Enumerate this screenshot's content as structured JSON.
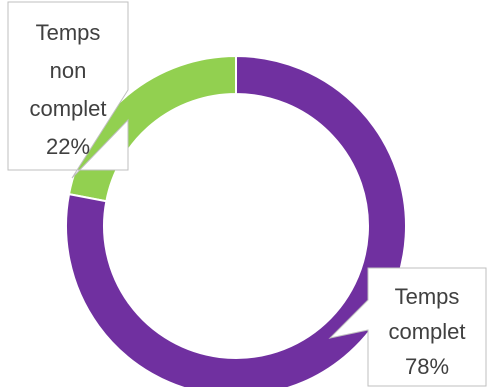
{
  "chart_data": {
    "type": "pie",
    "variant": "donut",
    "title": "",
    "categories": [
      "Temps non complet",
      "Temps complet"
    ],
    "values": [
      22,
      78
    ],
    "unit": "%",
    "colors": [
      "#92d050",
      "#7030a0"
    ],
    "labels": [
      {
        "lines": [
          "Temps",
          "non",
          "complet"
        ],
        "percent": "22%"
      },
      {
        "lines": [
          "Temps",
          "complet"
        ],
        "percent": "78%"
      }
    ],
    "legend": "none",
    "grid": false
  }
}
